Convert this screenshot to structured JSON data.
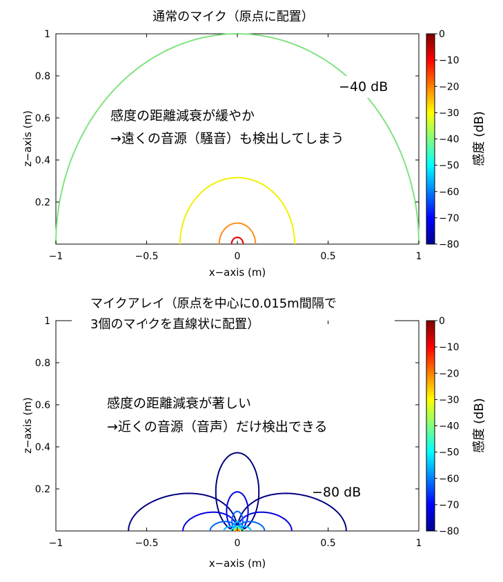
{
  "chart_data": [
    {
      "type": "contour",
      "title": "通常のマイク（原点に配置）",
      "xlabel": "x−axis (m)",
      "ylabel": "z−axis (m)",
      "xlim": [
        -1,
        1
      ],
      "ylim": [
        0,
        1
      ],
      "xticks": [
        "−1",
        "−0.5",
        "0",
        "0.5",
        "1"
      ],
      "yticks": [
        "0.2",
        "0.4",
        "0.6",
        "0.8",
        "1"
      ],
      "levels": [
        {
          "db": -40,
          "radius": 1.0,
          "color": "#7fe27f"
        },
        {
          "db": -30,
          "radius": 0.316,
          "color": "#f0f000"
        },
        {
          "db": -20,
          "radius": 0.1,
          "color": "#ff8a1a"
        },
        {
          "db": -10,
          "radius": 0.032,
          "color": "#e00000"
        }
      ],
      "level_label": "−40 dB",
      "annotation": [
        "感度の距離減衰が緩やか",
        "→遠くの音源（騒音）も検出してしまう"
      ],
      "colorbar": {
        "label": "感度 (dB)",
        "ticks": [
          "0",
          "−10",
          "−20",
          "−30",
          "−40",
          "−50",
          "−60",
          "−70",
          "−80"
        ],
        "range": [
          -80,
          0
        ]
      }
    },
    {
      "type": "contour",
      "title": [
        "マイクアレイ（原点を中心に0.015m間隔で",
        "3個のマイクを直線状に配置）"
      ],
      "xlabel": "x−axis (m)",
      "ylabel": "z−axis (m)",
      "xlim": [
        -1,
        1
      ],
      "ylim": [
        0,
        1
      ],
      "xticks": [
        "−1",
        "−0.5",
        "0",
        "0.5",
        "1"
      ],
      "yticks": [
        "0.2",
        "0.4",
        "0.6",
        "0.8",
        "1"
      ],
      "levels": [
        {
          "db": -80,
          "scale": 0.6,
          "color": "#00007f"
        },
        {
          "db": -70,
          "scale": 0.3,
          "color": "#0000e0"
        },
        {
          "db": -60,
          "scale": 0.15,
          "color": "#0060ff"
        },
        {
          "db": -50,
          "scale": 0.075,
          "color": "#00c0ff"
        },
        {
          "db": -40,
          "scale": 0.038,
          "color": "#40ffc0"
        },
        {
          "db": -30,
          "scale": 0.019,
          "color": "#f0f000"
        },
        {
          "db": -20,
          "scale": 0.01,
          "color": "#ff8a1a"
        }
      ],
      "level_label": "−80 dB",
      "annotation": [
        "感度の距離減衰が著しい",
        "→近くの音源（音声）だけ検出できる"
      ],
      "colorbar": {
        "label": "感度 (dB)",
        "ticks": [
          "0",
          "−10",
          "−20",
          "−30",
          "−40",
          "−50",
          "−60",
          "−70",
          "−80"
        ],
        "range": [
          -80,
          0
        ]
      }
    }
  ]
}
